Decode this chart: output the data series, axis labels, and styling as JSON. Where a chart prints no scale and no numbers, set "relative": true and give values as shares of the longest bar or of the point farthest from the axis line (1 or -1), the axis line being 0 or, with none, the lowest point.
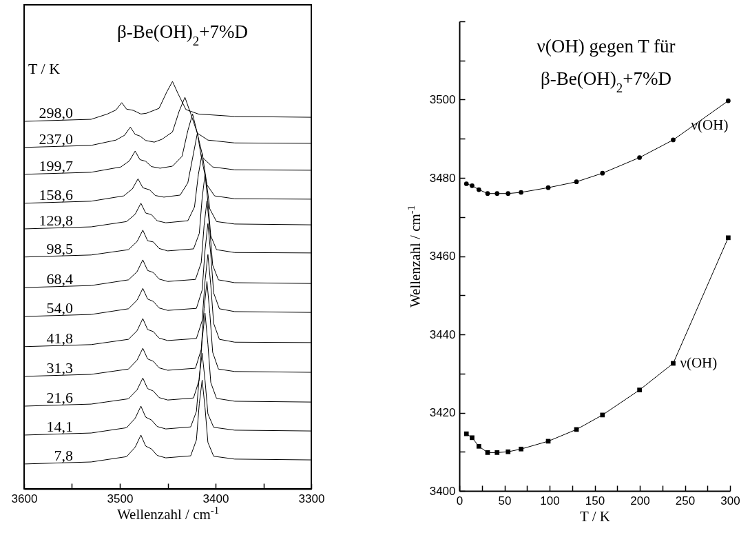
{
  "chart_data": [
    {
      "type": "line",
      "title": "β-Be(OH)$_{2}$+7%D",
      "xlabel": "Wellenzahl / cm$^{-1}$",
      "annotations": [
        "T / K"
      ],
      "relative": true,
      "xlim": [
        3600,
        3300
      ],
      "xticks": [
        3600,
        {
          "value": 3550,
          "label": null
        },
        3500,
        {
          "value": 3450,
          "label": null
        },
        3400,
        {
          "value": 3350,
          "label": null
        },
        3300
      ],
      "series": [
        {
          "name": "298,0",
          "color": "#000000",
          "x": [
            3600,
            3530,
            3513,
            3504,
            3498,
            3493,
            3486,
            3478,
            3472,
            3459,
            3451,
            3445,
            3439,
            3431,
            3418,
            3380,
            3300
          ],
          "values": [
            0.902,
            0.907,
            0.92,
            0.93,
            0.948,
            0.932,
            0.929,
            0.92,
            0.922,
            0.934,
            0.974,
            1.0,
            0.969,
            0.931,
            0.92,
            0.914,
            0.912
          ]
        },
        {
          "name": "237,0",
          "color": "#000000",
          "x": [
            3600,
            3530,
            3504,
            3495,
            3489,
            3484,
            3479,
            3473,
            3464,
            3456,
            3445,
            3438,
            3432,
            3426,
            3419,
            3408,
            3380,
            3300
          ],
          "values": [
            0.838,
            0.843,
            0.856,
            0.868,
            0.888,
            0.87,
            0.866,
            0.855,
            0.851,
            0.858,
            0.876,
            0.927,
            0.961,
            0.921,
            0.873,
            0.856,
            0.849,
            0.848
          ]
        },
        {
          "name": "199,7",
          "color": "#000000",
          "x": [
            3600,
            3530,
            3499,
            3490,
            3484,
            3479,
            3473,
            3467,
            3458,
            3445,
            3435,
            3429,
            3424,
            3419,
            3413,
            3403,
            3380,
            3300
          ],
          "values": [
            0.772,
            0.777,
            0.79,
            0.805,
            0.829,
            0.808,
            0.804,
            0.791,
            0.787,
            0.792,
            0.816,
            0.879,
            0.92,
            0.872,
            0.812,
            0.79,
            0.783,
            0.782
          ]
        },
        {
          "name": "158,6",
          "color": "#000000",
          "x": [
            3600,
            3530,
            3496,
            3487,
            3481,
            3476,
            3469,
            3463,
            3454,
            3437,
            3429,
            3423,
            3419,
            3415,
            3409,
            3401,
            3380,
            3300
          ],
          "values": [
            0.701,
            0.706,
            0.719,
            0.736,
            0.761,
            0.739,
            0.734,
            0.72,
            0.716,
            0.721,
            0.751,
            0.824,
            0.873,
            0.816,
            0.746,
            0.719,
            0.712,
            0.711
          ]
        },
        {
          "name": "129,8",
          "color": "#000000",
          "x": [
            3600,
            3530,
            3493,
            3484,
            3478,
            3473,
            3467,
            3461,
            3452,
            3429,
            3422,
            3418,
            3414,
            3410,
            3406,
            3399,
            3380,
            3300
          ],
          "values": [
            0.638,
            0.643,
            0.656,
            0.674,
            0.701,
            0.677,
            0.673,
            0.658,
            0.653,
            0.658,
            0.692,
            0.771,
            0.824,
            0.762,
            0.687,
            0.656,
            0.65,
            0.648
          ]
        },
        {
          "name": "98,5",
          "color": "#000000",
          "x": [
            3600,
            3530,
            3491,
            3482,
            3476,
            3471,
            3465,
            3459,
            3450,
            3423,
            3417,
            3414,
            3411,
            3408,
            3405,
            3399,
            3380,
            3300
          ],
          "values": [
            0.569,
            0.574,
            0.587,
            0.607,
            0.635,
            0.609,
            0.606,
            0.59,
            0.584,
            0.589,
            0.627,
            0.714,
            0.772,
            0.704,
            0.621,
            0.587,
            0.58,
            0.579
          ]
        },
        {
          "name": "68,4",
          "color": "#000000",
          "x": [
            3600,
            3530,
            3491,
            3482,
            3476,
            3471,
            3465,
            3459,
            3450,
            3421,
            3415,
            3412,
            3409,
            3406,
            3403,
            3397,
            3380,
            3300
          ],
          "values": [
            0.494,
            0.499,
            0.513,
            0.533,
            0.562,
            0.536,
            0.531,
            0.515,
            0.509,
            0.514,
            0.555,
            0.646,
            0.707,
            0.636,
            0.549,
            0.513,
            0.506,
            0.504
          ]
        },
        {
          "name": "54,0",
          "color": "#000000",
          "x": [
            3600,
            3530,
            3491,
            3482,
            3476,
            3471,
            3465,
            3459,
            3450,
            3420,
            3414,
            3411,
            3408,
            3405,
            3402,
            3396,
            3380,
            3300
          ],
          "values": [
            0.423,
            0.428,
            0.442,
            0.463,
            0.492,
            0.466,
            0.46,
            0.444,
            0.438,
            0.443,
            0.488,
            0.586,
            0.651,
            0.575,
            0.481,
            0.442,
            0.435,
            0.433
          ]
        },
        {
          "name": "41,8",
          "color": "#000000",
          "x": [
            3600,
            3530,
            3491,
            3482,
            3476,
            3471,
            3465,
            3459,
            3450,
            3420,
            3414,
            3411,
            3408,
            3405,
            3402,
            3396,
            3380,
            3300
          ],
          "values": [
            0.349,
            0.354,
            0.367,
            0.388,
            0.418,
            0.391,
            0.386,
            0.37,
            0.364,
            0.369,
            0.413,
            0.51,
            0.575,
            0.5,
            0.406,
            0.367,
            0.36,
            0.359
          ]
        },
        {
          "name": "31,3",
          "color": "#000000",
          "x": [
            3600,
            3530,
            3491,
            3482,
            3476,
            3471,
            3465,
            3459,
            3450,
            3421,
            3415,
            3412,
            3409,
            3406,
            3403,
            3397,
            3380,
            3300
          ],
          "values": [
            0.276,
            0.281,
            0.294,
            0.316,
            0.345,
            0.319,
            0.313,
            0.297,
            0.291,
            0.296,
            0.342,
            0.442,
            0.509,
            0.431,
            0.335,
            0.294,
            0.288,
            0.286
          ]
        },
        {
          "name": "21,6",
          "color": "#000000",
          "x": [
            3600,
            3530,
            3491,
            3482,
            3476,
            3471,
            3465,
            3459,
            3450,
            3423,
            3417,
            3414,
            3411,
            3408,
            3405,
            3399,
            3380,
            3300
          ],
          "values": [
            0.203,
            0.208,
            0.221,
            0.243,
            0.272,
            0.246,
            0.24,
            0.224,
            0.218,
            0.223,
            0.268,
            0.366,
            0.431,
            0.355,
            0.261,
            0.222,
            0.215,
            0.213
          ]
        },
        {
          "name": "14,1",
          "color": "#000000",
          "x": [
            3600,
            3530,
            3493,
            3484,
            3478,
            3473,
            3467,
            3461,
            3452,
            3426,
            3420,
            3417,
            3414,
            3411,
            3408,
            3402,
            3380,
            3300
          ],
          "values": [
            0.132,
            0.137,
            0.15,
            0.173,
            0.203,
            0.176,
            0.169,
            0.153,
            0.147,
            0.152,
            0.19,
            0.276,
            0.333,
            0.266,
            0.184,
            0.151,
            0.144,
            0.142
          ]
        },
        {
          "name": "7,8",
          "color": "#000000",
          "x": [
            3600,
            3530,
            3493,
            3484,
            3478,
            3473,
            3467,
            3461,
            3452,
            3426,
            3420,
            3417,
            3414,
            3411,
            3408,
            3402,
            3380,
            3300
          ],
          "values": [
            0.061,
            0.066,
            0.079,
            0.102,
            0.132,
            0.105,
            0.098,
            0.082,
            0.076,
            0.081,
            0.12,
            0.209,
            0.267,
            0.199,
            0.114,
            0.08,
            0.073,
            0.071
          ]
        }
      ]
    },
    {
      "type": "line",
      "title": "ν(OH) gegen T für\nβ-Be(OH)$_{2}$+7%D",
      "xlabel": "T / K",
      "ylabel": "Wellenzahl / cm$^{-1}$",
      "xlim": [
        0,
        300
      ],
      "xticks": [
        0,
        {
          "value": 25,
          "label": null
        },
        50,
        {
          "value": 75,
          "label": null
        },
        100,
        {
          "value": 125,
          "label": null
        },
        150,
        {
          "value": 175,
          "label": null
        },
        200,
        {
          "value": 225,
          "label": null
        },
        250,
        {
          "value": 275,
          "label": null
        },
        300
      ],
      "ylim": [
        3400,
        3520
      ],
      "yticks": [
        3400,
        {
          "value": 3410,
          "label": null
        },
        3420,
        {
          "value": 3430,
          "label": null
        },
        3440,
        {
          "value": 3450,
          "label": null
        },
        3460,
        {
          "value": 3470,
          "label": null
        },
        3480,
        {
          "value": 3490,
          "label": null
        },
        3500,
        {
          "value": 3510,
          "label": null
        },
        {
          "value": 3520,
          "label": null
        }
      ],
      "x": [
        7.8,
        14.1,
        21.6,
        31.3,
        41.8,
        54.0,
        68.4,
        98.5,
        129.8,
        158.6,
        199.7,
        237.0,
        298.0
      ],
      "series": [
        {
          "name": "ν(OH)",
          "color": "#000000",
          "marker": "circle",
          "values": [
            3478.5,
            3478.0,
            3477.0,
            3476.0,
            3476.0,
            3476.0,
            3476.3,
            3477.5,
            3479.0,
            3481.2,
            3485.2,
            3489.7,
            3499.7
          ]
        },
        {
          "name": "ν(OH)",
          "color": "#000000",
          "marker": "square",
          "values": [
            3414.6,
            3413.6,
            3411.4,
            3409.8,
            3409.8,
            3410.0,
            3410.7,
            3412.7,
            3415.7,
            3419.4,
            3425.8,
            3432.6,
            3464.7
          ]
        }
      ]
    }
  ]
}
